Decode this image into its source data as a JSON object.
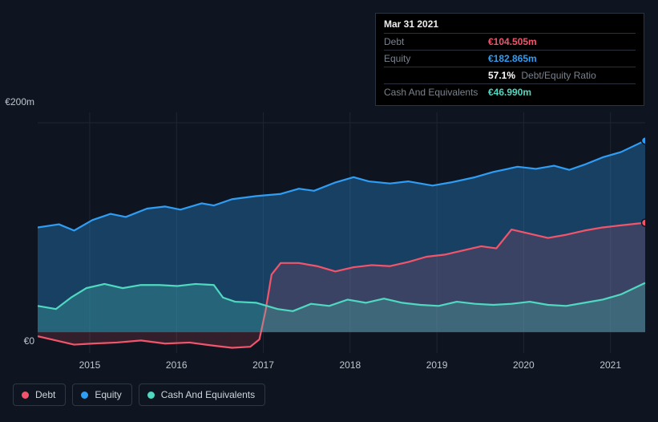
{
  "chart": {
    "type": "area-line",
    "background_color": "#0e1520",
    "grid_color": "#1e2631",
    "x_axis": {
      "ticks": [
        "2015",
        "2016",
        "2017",
        "2018",
        "2019",
        "2020",
        "2021"
      ]
    },
    "y_axis": {
      "ticks": [
        {
          "label": "€200m",
          "value": 200
        },
        {
          "label": "€0",
          "value": 0
        }
      ],
      "min": -20,
      "max": 210
    },
    "series": [
      {
        "key": "equity",
        "name": "Equity",
        "color": "#2f9df4",
        "fill_opacity": 0.32,
        "end_marker": true,
        "points": [
          [
            0.0,
            100
          ],
          [
            0.035,
            103
          ],
          [
            0.06,
            97
          ],
          [
            0.09,
            107
          ],
          [
            0.12,
            113
          ],
          [
            0.145,
            110
          ],
          [
            0.18,
            118
          ],
          [
            0.21,
            120
          ],
          [
            0.235,
            117
          ],
          [
            0.27,
            123
          ],
          [
            0.29,
            121
          ],
          [
            0.32,
            127
          ],
          [
            0.36,
            130
          ],
          [
            0.4,
            132
          ],
          [
            0.43,
            137
          ],
          [
            0.455,
            135
          ],
          [
            0.49,
            143
          ],
          [
            0.52,
            148
          ],
          [
            0.545,
            144
          ],
          [
            0.58,
            142
          ],
          [
            0.61,
            144
          ],
          [
            0.65,
            140
          ],
          [
            0.68,
            143
          ],
          [
            0.72,
            148
          ],
          [
            0.75,
            153
          ],
          [
            0.79,
            158
          ],
          [
            0.82,
            156
          ],
          [
            0.85,
            159
          ],
          [
            0.875,
            155
          ],
          [
            0.9,
            160
          ],
          [
            0.93,
            167
          ],
          [
            0.96,
            172
          ],
          [
            1.0,
            183
          ]
        ]
      },
      {
        "key": "debt",
        "name": "Debt",
        "color": "#f2556b",
        "fill_opacity": 0.16,
        "end_marker": true,
        "points": [
          [
            0.0,
            -4
          ],
          [
            0.03,
            -8
          ],
          [
            0.06,
            -12
          ],
          [
            0.09,
            -11
          ],
          [
            0.13,
            -10
          ],
          [
            0.17,
            -8
          ],
          [
            0.21,
            -11
          ],
          [
            0.25,
            -10
          ],
          [
            0.29,
            -13
          ],
          [
            0.32,
            -15
          ],
          [
            0.35,
            -14
          ],
          [
            0.365,
            -7
          ],
          [
            0.375,
            20
          ],
          [
            0.385,
            55
          ],
          [
            0.4,
            66
          ],
          [
            0.43,
            66
          ],
          [
            0.46,
            63
          ],
          [
            0.49,
            58
          ],
          [
            0.52,
            62
          ],
          [
            0.55,
            64
          ],
          [
            0.58,
            63
          ],
          [
            0.61,
            67
          ],
          [
            0.64,
            72
          ],
          [
            0.67,
            74
          ],
          [
            0.7,
            78
          ],
          [
            0.73,
            82
          ],
          [
            0.755,
            80
          ],
          [
            0.78,
            98
          ],
          [
            0.81,
            94
          ],
          [
            0.84,
            90
          ],
          [
            0.87,
            93
          ],
          [
            0.9,
            97
          ],
          [
            0.93,
            100
          ],
          [
            0.96,
            102
          ],
          [
            1.0,
            104.5
          ]
        ]
      },
      {
        "key": "cash",
        "name": "Cash And Equivalents",
        "color": "#4fd9c0",
        "fill_opacity": 0.24,
        "end_marker": false,
        "points": [
          [
            0.0,
            25
          ],
          [
            0.03,
            22
          ],
          [
            0.055,
            33
          ],
          [
            0.08,
            42
          ],
          [
            0.11,
            46
          ],
          [
            0.14,
            42
          ],
          [
            0.17,
            45
          ],
          [
            0.2,
            45
          ],
          [
            0.23,
            44
          ],
          [
            0.26,
            46
          ],
          [
            0.29,
            45
          ],
          [
            0.305,
            33
          ],
          [
            0.325,
            29
          ],
          [
            0.36,
            28
          ],
          [
            0.395,
            22
          ],
          [
            0.42,
            20
          ],
          [
            0.45,
            27
          ],
          [
            0.48,
            25
          ],
          [
            0.51,
            31
          ],
          [
            0.54,
            28
          ],
          [
            0.57,
            32
          ],
          [
            0.6,
            28
          ],
          [
            0.63,
            26
          ],
          [
            0.66,
            25
          ],
          [
            0.69,
            29
          ],
          [
            0.72,
            27
          ],
          [
            0.75,
            26
          ],
          [
            0.78,
            27
          ],
          [
            0.81,
            29
          ],
          [
            0.84,
            26
          ],
          [
            0.87,
            25
          ],
          [
            0.9,
            28
          ],
          [
            0.93,
            31
          ],
          [
            0.96,
            36
          ],
          [
            1.0,
            47
          ]
        ]
      }
    ]
  },
  "tooltip": {
    "title": "Mar 31 2021",
    "rows": [
      {
        "label": "Debt",
        "value": "€104.505m",
        "color": "#f2556b"
      },
      {
        "label": "Equity",
        "value": "€182.865m",
        "color": "#2f9df4"
      }
    ],
    "ratio": {
      "value": "57.1%",
      "label": "Debt/Equity Ratio"
    },
    "extra": {
      "label": "Cash And Equivalents",
      "value": "€46.990m",
      "color": "#4fd9c0"
    }
  },
  "legend": {
    "items": [
      {
        "key": "debt",
        "label": "Debt",
        "color": "#f2556b"
      },
      {
        "key": "equity",
        "label": "Equity",
        "color": "#2f9df4"
      },
      {
        "key": "cash",
        "label": "Cash And Equivalents",
        "color": "#4fd9c0"
      }
    ]
  }
}
